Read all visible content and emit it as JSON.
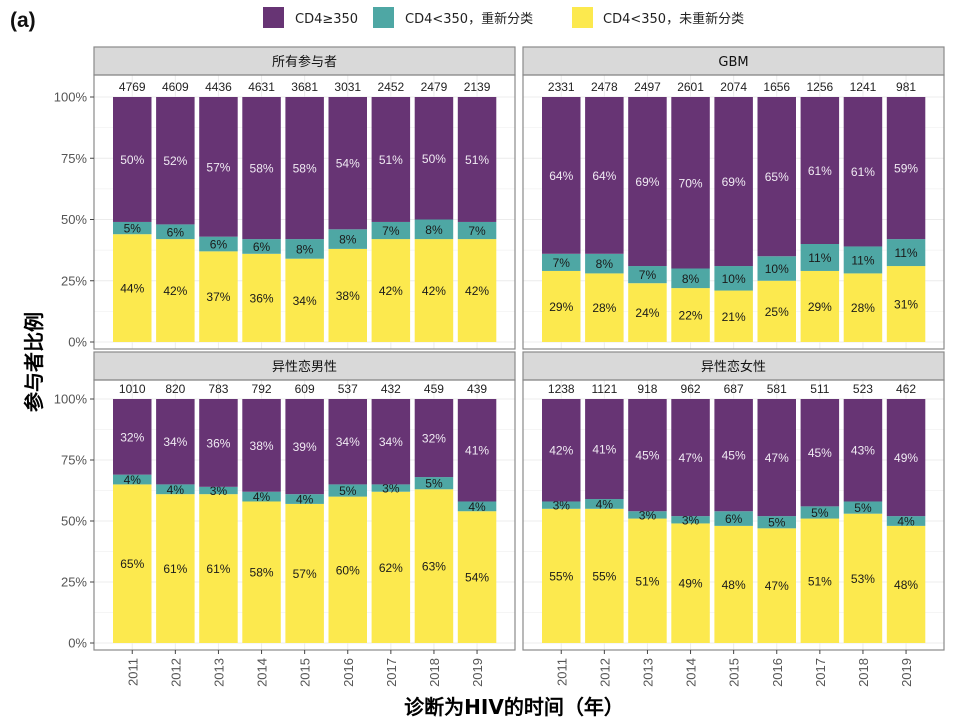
{
  "panel_label": "(a)",
  "colors": {
    "cd4_ge_350": "#673474",
    "cd4_lt_350_reclassified": "#4ea7a4",
    "cd4_lt_350_not_reclassified": "#fce94e",
    "strip_bg": "#d9d9d9",
    "panel_border": "#8a8a8a",
    "grid": "#ececec"
  },
  "chart_data": {
    "type": "bar",
    "stacked": true,
    "xlabel": "诊断为HIV的时间（年）",
    "ylabel": "参与者比例",
    "ylim": [
      0,
      100
    ],
    "yticks": [
      "0%",
      "25%",
      "50%",
      "75%",
      "100%"
    ],
    "grid": true,
    "legend": {
      "position": "top",
      "entries": [
        "CD4≥350",
        "CD4<350，重新分类",
        "CD4<350，未重新分类"
      ]
    },
    "categories": [
      "2011",
      "2012",
      "2013",
      "2014",
      "2015",
      "2016",
      "2017",
      "2018",
      "2019"
    ],
    "facets": [
      {
        "title": "所有参与者",
        "counts": [
          4769,
          4609,
          4436,
          4631,
          3681,
          3031,
          2452,
          2479,
          2139
        ],
        "series": [
          {
            "name": "CD4<350，未重新分类",
            "values": [
              44,
              42,
              37,
              36,
              34,
              38,
              42,
              42,
              42
            ]
          },
          {
            "name": "CD4<350，重新分类",
            "values": [
              5,
              6,
              6,
              6,
              8,
              8,
              7,
              8,
              7
            ]
          },
          {
            "name": "CD4≥350",
            "values": [
              50,
              52,
              57,
              58,
              58,
              54,
              51,
              50,
              51
            ]
          }
        ]
      },
      {
        "title": "GBM",
        "counts": [
          2331,
          2478,
          2497,
          2601,
          2074,
          1656,
          1256,
          1241,
          981
        ],
        "series": [
          {
            "name": "CD4<350，未重新分类",
            "values": [
              29,
              28,
              24,
              22,
              21,
              25,
              29,
              28,
              31
            ]
          },
          {
            "name": "CD4<350，重新分类",
            "values": [
              7,
              8,
              7,
              8,
              10,
              10,
              11,
              11,
              11
            ]
          },
          {
            "name": "CD4≥350",
            "values": [
              64,
              64,
              69,
              70,
              69,
              65,
              61,
              61,
              59
            ]
          }
        ]
      },
      {
        "title": "异性恋男性",
        "counts": [
          1010,
          820,
          783,
          792,
          609,
          537,
          432,
          459,
          439
        ],
        "series": [
          {
            "name": "CD4<350，未重新分类",
            "values": [
              65,
              61,
              61,
              58,
              57,
              60,
              62,
              63,
              54
            ]
          },
          {
            "name": "CD4<350，重新分类",
            "values": [
              4,
              4,
              3,
              4,
              4,
              5,
              3,
              5,
              4
            ]
          },
          {
            "name": "CD4≥350",
            "values": [
              32,
              34,
              36,
              38,
              39,
              34,
              34,
              32,
              41
            ]
          }
        ]
      },
      {
        "title": "异性恋女性",
        "counts": [
          1238,
          1121,
          918,
          962,
          687,
          581,
          511,
          523,
          462
        ],
        "series": [
          {
            "name": "CD4<350，未重新分类",
            "values": [
              55,
              55,
              51,
              49,
              48,
              47,
              51,
              53,
              48
            ]
          },
          {
            "name": "CD4<350，重新分类",
            "values": [
              3,
              4,
              3,
              3,
              6,
              5,
              5,
              5,
              4
            ]
          },
          {
            "name": "CD4≥350",
            "values": [
              42,
              41,
              45,
              47,
              45,
              47,
              45,
              43,
              49
            ]
          }
        ]
      }
    ]
  }
}
